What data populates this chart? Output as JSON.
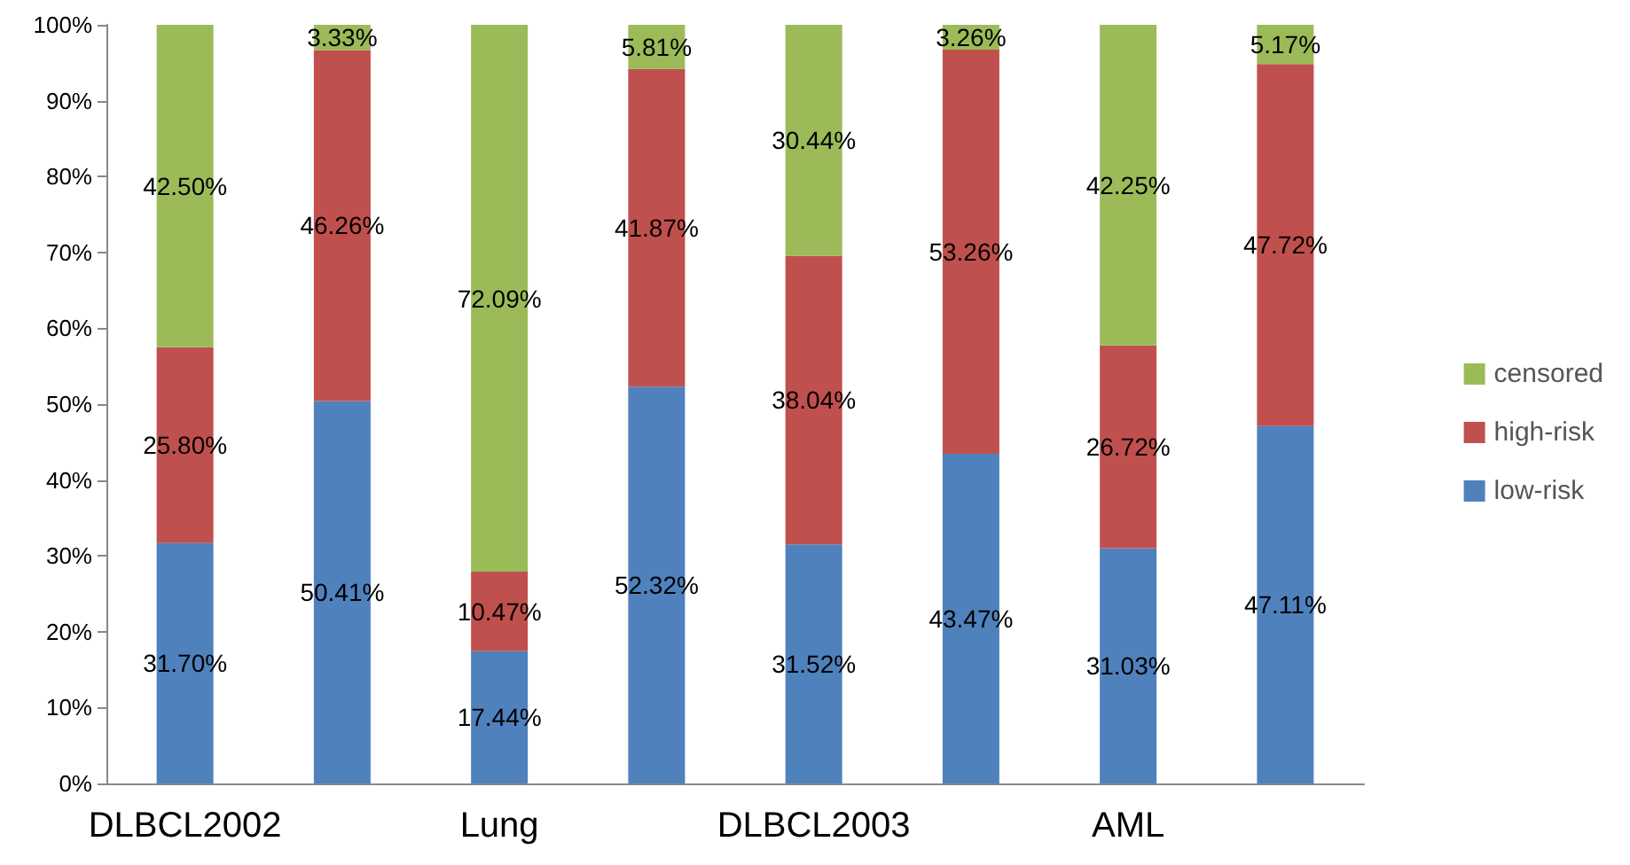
{
  "chart_data": {
    "type": "bar",
    "stacked": true,
    "categories": [
      "DLBCL2002",
      null,
      "Lung",
      null,
      "DLBCL2003",
      null,
      "AML",
      null
    ],
    "series": [
      {
        "name": "low-risk",
        "color": "#4f81bd",
        "values": [
          31.7,
          50.41,
          17.44,
          52.32,
          31.52,
          43.47,
          31.03,
          47.11
        ],
        "value_labels": [
          "31.70%",
          "50.41%",
          "17.44%",
          "52.32%",
          "31.52%",
          "43.47%",
          "31.03%",
          "47.11%"
        ]
      },
      {
        "name": "high-risk",
        "color": "#c0504d",
        "values": [
          25.8,
          46.26,
          10.47,
          41.87,
          38.04,
          53.26,
          26.72,
          47.72
        ],
        "value_labels": [
          "25.80%",
          "46.26%",
          "10.47%",
          "41.87%",
          "38.04%",
          "53.26%",
          "26.72%",
          "47.72%"
        ]
      },
      {
        "name": "censored",
        "color": "#9bbb59",
        "values": [
          42.5,
          3.33,
          72.09,
          5.81,
          30.44,
          3.26,
          42.25,
          5.17
        ],
        "value_labels": [
          "42.50%",
          "3.33%",
          "72.09%",
          "5.81%",
          "30.44%",
          "3.26%",
          "42.25%",
          "5.17%"
        ]
      }
    ],
    "ylim": [
      0,
      100
    ],
    "yticks": [
      {
        "value": 0,
        "label": "0%"
      },
      {
        "value": 10,
        "label": "10%"
      },
      {
        "value": 20,
        "label": "20%"
      },
      {
        "value": 30,
        "label": "30%"
      },
      {
        "value": 40,
        "label": "40%"
      },
      {
        "value": 50,
        "label": "50%"
      },
      {
        "value": 60,
        "label": "60%"
      },
      {
        "value": 70,
        "label": "70%"
      },
      {
        "value": 80,
        "label": "80%"
      },
      {
        "value": 90,
        "label": "90%"
      },
      {
        "value": 100,
        "label": "100%"
      }
    ],
    "grid": false,
    "legend": "right"
  }
}
